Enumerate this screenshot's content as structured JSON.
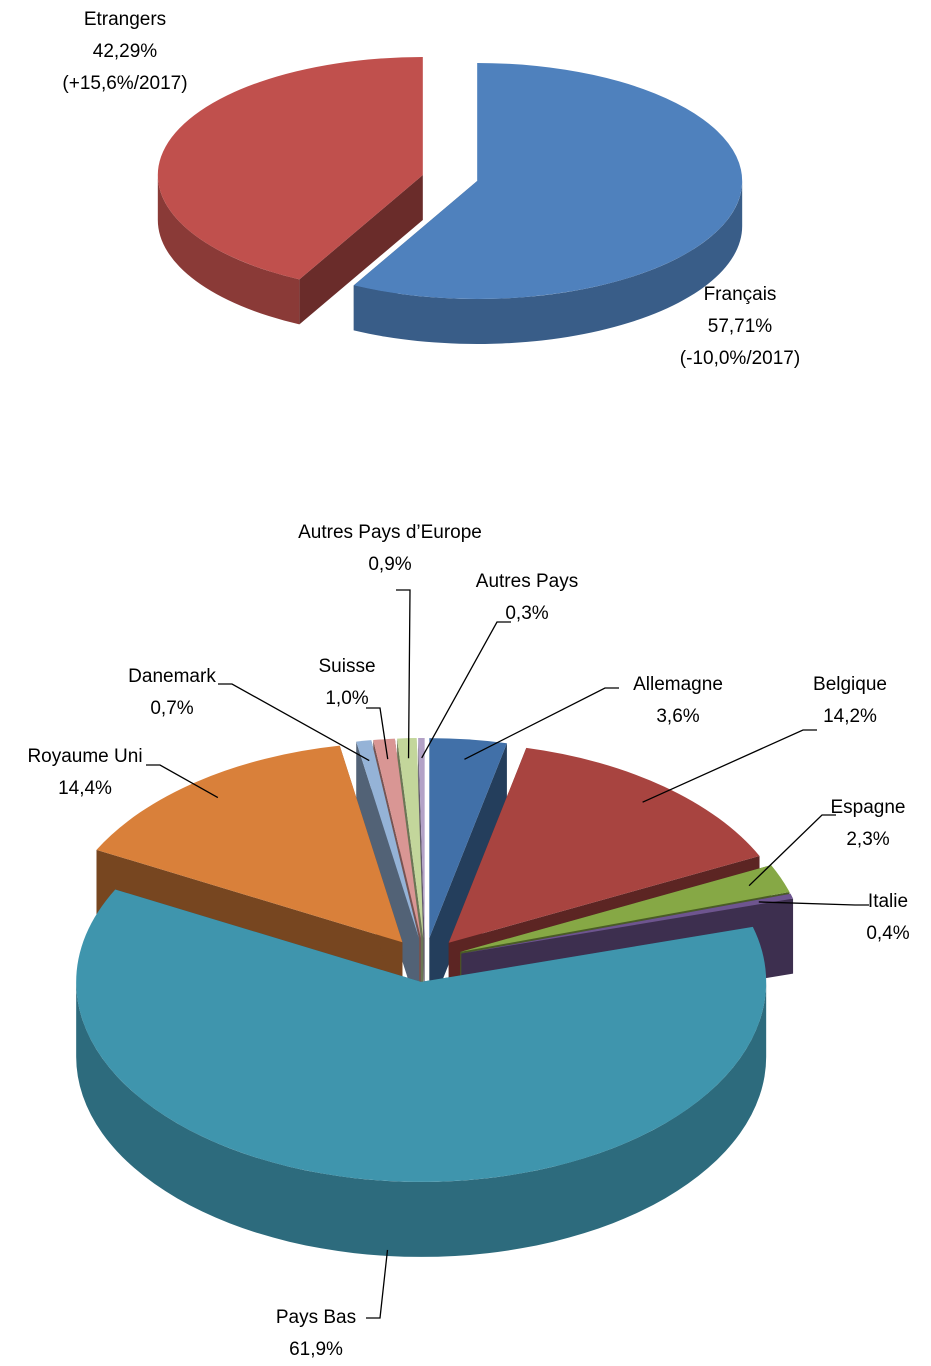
{
  "chart_data": [
    {
      "type": "pie",
      "categories": [
        "Français",
        "Etrangers"
      ],
      "values": [
        57.71,
        42.29
      ],
      "value_labels": [
        "57,71%",
        "42,29%"
      ],
      "changes": [
        "(-10,0%/2017)",
        "(+15,6%/2017)"
      ],
      "colors": [
        "#4f81bd",
        "#c0504d"
      ]
    },
    {
      "type": "pie",
      "categories": [
        "Allemagne",
        "Belgique",
        "Espagne",
        "Italie",
        "Pays Bas",
        "Royaume Uni",
        "Danemark",
        "Suisse",
        "Autres Pays d’Europe",
        "Autres Pays"
      ],
      "values": [
        3.6,
        14.2,
        2.3,
        0.4,
        61.9,
        14.4,
        0.7,
        1.0,
        0.9,
        0.3
      ],
      "value_labels": [
        "3,6%",
        "14,2%",
        "2,3%",
        "0,4%",
        "61,9%",
        "14,4%",
        "0,7%",
        "1,0%",
        "0,9%",
        "0,3%"
      ],
      "colors": [
        "#4170a8",
        "#a84440",
        "#86a845",
        "#6e558f",
        "#3f95ad",
        "#d9803a",
        "#95b3d7",
        "#d99694",
        "#c3d69b",
        "#b3a2c7"
      ]
    }
  ]
}
